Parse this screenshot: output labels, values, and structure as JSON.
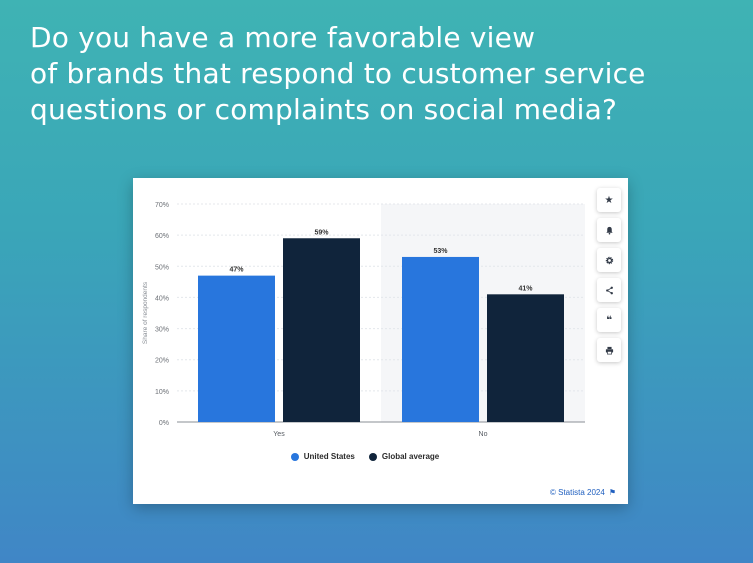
{
  "headline": {
    "line1": "Do you have a more favorable view",
    "line2": "of brands that respond to customer service",
    "line3": "questions or complaints on social media?"
  },
  "toolbar": {
    "items": [
      {
        "name": "star-icon",
        "glyph": "★"
      },
      {
        "name": "bell-icon",
        "glyph": "bell"
      },
      {
        "name": "gear-icon",
        "glyph": "gear"
      },
      {
        "name": "share-icon",
        "glyph": "share"
      },
      {
        "name": "quote-icon",
        "glyph": "❝"
      },
      {
        "name": "print-icon",
        "glyph": "print"
      }
    ]
  },
  "chart_data": {
    "type": "bar",
    "title": "",
    "xlabel": "",
    "ylabel": "Share of respondents",
    "categories": [
      "Yes",
      "No"
    ],
    "series": [
      {
        "name": "United States",
        "color": "#2876dd",
        "values": [
          47,
          53
        ]
      },
      {
        "name": "Global average",
        "color": "#10243b",
        "values": [
          59,
          41
        ]
      }
    ],
    "value_suffix": "%",
    "ylim": [
      0,
      70
    ],
    "yticks": [
      0,
      10,
      20,
      30,
      40,
      50,
      60,
      70
    ],
    "yticks_labels": [
      "0%",
      "10%",
      "20%",
      "30%",
      "40%",
      "50%",
      "60%",
      "70%"
    ],
    "grid": true,
    "legend_position": "bottom-center",
    "highlight_category": "No"
  },
  "legend": {
    "us_label": "United States",
    "global_label": "Global average"
  },
  "credit": {
    "text": "© Statista 2024",
    "flag_glyph": "⚑"
  },
  "colors": {
    "us": "#2876dd",
    "global": "#10243b"
  }
}
